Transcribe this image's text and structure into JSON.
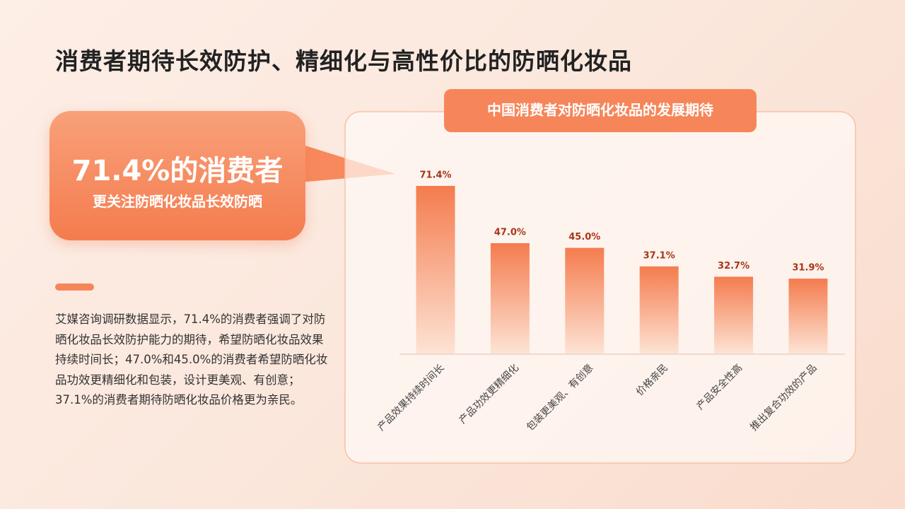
{
  "title": "消费者期待长效防护、精细化与高性价比的防晒化妆品",
  "callout": {
    "headline": "71.4%的消费者",
    "subline": "更关注防晒化妆品长效防晒"
  },
  "paragraph": "艾媒咨询调研数据显示，71.4%的消费者强调了对防晒化妆品长效防护能力的期待，希望防晒化妆品效果持续时间长；47.0%和45.0%的消费者希望防晒化妆品功效更精细化和包装，设计更美观、有创意；37.1%的消费者期待防晒化妆品价格更为亲民。",
  "chart_data": {
    "type": "bar",
    "title": "中国消费者对防晒化妆品的发展期待",
    "categories": [
      "产品效果持续时间长",
      "产品功效更精细化",
      "包装更美观、有创意",
      "价格亲民",
      "产品安全性高",
      "推出复合功效的产品"
    ],
    "values": [
      71.4,
      47.0,
      45.0,
      37.1,
      32.7,
      31.9
    ],
    "value_labels": [
      "71.4%",
      "47.0%",
      "45.0%",
      "37.1%",
      "32.7%",
      "31.9%"
    ],
    "color": "#f47c4e"
  }
}
